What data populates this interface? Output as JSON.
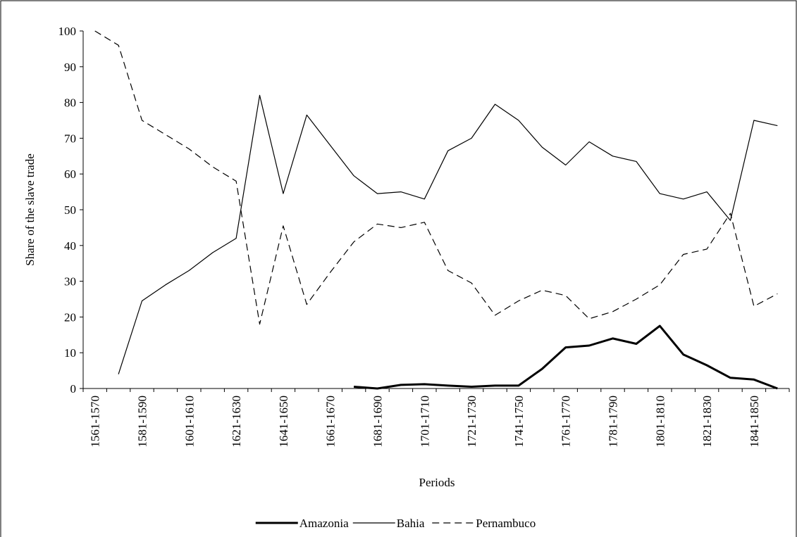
{
  "chart_data": {
    "type": "line",
    "x_label": "Periods",
    "y_label": "Share of the slave trade",
    "categories": [
      "1561-1570",
      null,
      "1581-1590",
      null,
      "1601-1610",
      null,
      "1621-1630",
      null,
      "1641-1650",
      null,
      "1661-1670",
      null,
      "1681-1690",
      null,
      "1701-1710",
      null,
      "1721-1730",
      null,
      "1741-1750",
      null,
      "1761-1770",
      null,
      "1781-1790",
      null,
      "1801-1810",
      null,
      "1821-1830",
      null,
      "1841-1850",
      null
    ],
    "series": [
      {
        "name": "Amazonia",
        "color": "#000000",
        "width": 3,
        "dashed": false,
        "values": [
          null,
          null,
          null,
          null,
          null,
          null,
          null,
          null,
          null,
          null,
          null,
          0.5,
          0,
          1,
          1.2,
          0.8,
          0.5,
          0.8,
          0.8,
          5.5,
          11.5,
          12,
          14,
          12.5,
          17.5,
          9.5,
          6.5,
          3,
          2.5,
          0
        ]
      },
      {
        "name": "Bahia",
        "color": "#000000",
        "width": 1.2,
        "dashed": false,
        "values": [
          null,
          4,
          24.5,
          29,
          33,
          38,
          42,
          82,
          54.5,
          76.5,
          68,
          59.5,
          54.5,
          55,
          53,
          66.5,
          70,
          79.5,
          75,
          67.5,
          62.5,
          69,
          65,
          63.5,
          54.5,
          53,
          55,
          47,
          75,
          73.5
        ]
      },
      {
        "name": "Pernambuco",
        "color": "#000000",
        "width": 1.2,
        "dashed": true,
        "values": [
          100,
          96,
          75,
          71,
          67,
          62,
          58,
          18,
          45.5,
          23.5,
          32.5,
          41,
          46,
          45,
          46.5,
          33,
          29.5,
          20.5,
          24.5,
          27.5,
          26,
          19.5,
          21.5,
          25,
          29,
          37.5,
          39,
          49,
          23,
          26.5
        ]
      }
    ],
    "ylim": [
      0,
      100
    ],
    "yticks": [
      0,
      10,
      20,
      30,
      40,
      50,
      60,
      70,
      80,
      90,
      100
    ],
    "grid": false
  }
}
